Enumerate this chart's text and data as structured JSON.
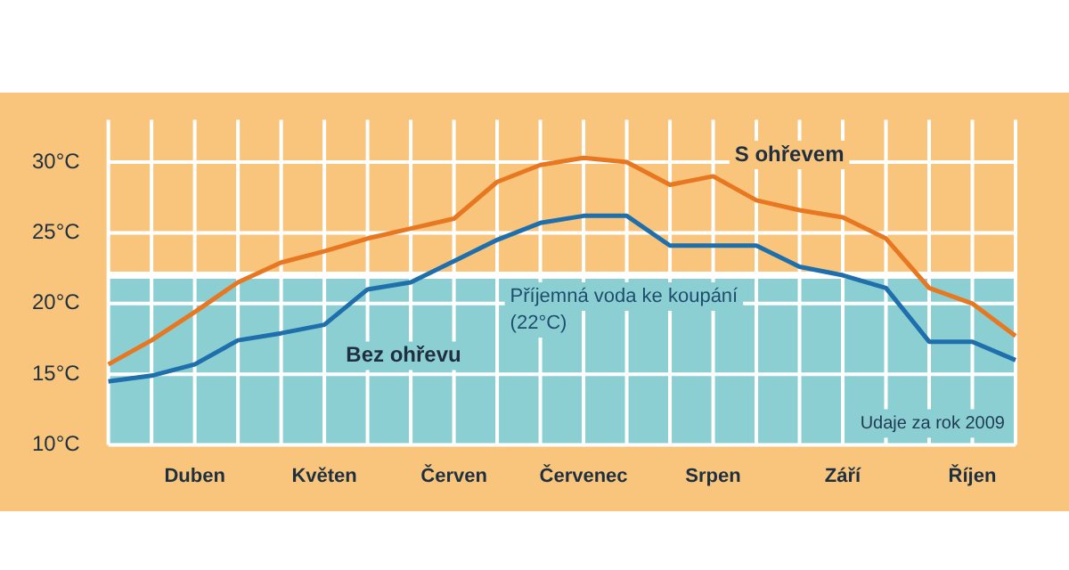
{
  "chart_data": {
    "type": "line",
    "categories": [
      null,
      null,
      "Duben",
      null,
      null,
      "Květen",
      null,
      null,
      "Červen",
      null,
      null,
      "Červenec",
      null,
      null,
      "Srpen",
      null,
      null,
      "Září",
      null,
      null,
      "Říjen",
      null
    ],
    "series": [
      {
        "name": "S ohřevem",
        "color": "#e87722",
        "values": [
          15.7,
          17.4,
          19.4,
          21.5,
          22.9,
          23.7,
          24.6,
          25.3,
          26.0,
          28.6,
          29.8,
          30.3,
          30.0,
          28.4,
          29.0,
          27.3,
          26.6,
          26.1,
          24.6,
          21.1,
          20.0,
          17.7
        ]
      },
      {
        "name": "Bez ohřevu",
        "color": "#1f6fad",
        "values": [
          14.5,
          14.9,
          15.7,
          17.4,
          17.9,
          18.5,
          21.0,
          21.5,
          23.0,
          24.5,
          25.7,
          26.2,
          26.2,
          24.1,
          24.1,
          24.1,
          22.6,
          22.0,
          21.1,
          17.3,
          17.3,
          16.0
        ]
      }
    ],
    "ylim": [
      10,
      33
    ],
    "yticks": [
      {
        "value": 10,
        "label": "10°C"
      },
      {
        "value": 15,
        "label": "15°C"
      },
      {
        "value": 20,
        "label": "20°C"
      },
      {
        "value": 25,
        "label": "25°C"
      },
      {
        "value": 30,
        "label": "30°C"
      }
    ],
    "bands": [
      {
        "axis": "y",
        "from": 10,
        "to": 22,
        "label": "Příjemná voda ke koupání\n(22°C)",
        "color": "#8ccfd3"
      }
    ],
    "ref_lines": [
      {
        "axis": "y",
        "value": 22,
        "color": "#ffffff"
      }
    ],
    "annotations": [
      "Udaje za rok 2009"
    ],
    "grid": true,
    "legend": false,
    "marker": "none",
    "line_style": "solid"
  }
}
